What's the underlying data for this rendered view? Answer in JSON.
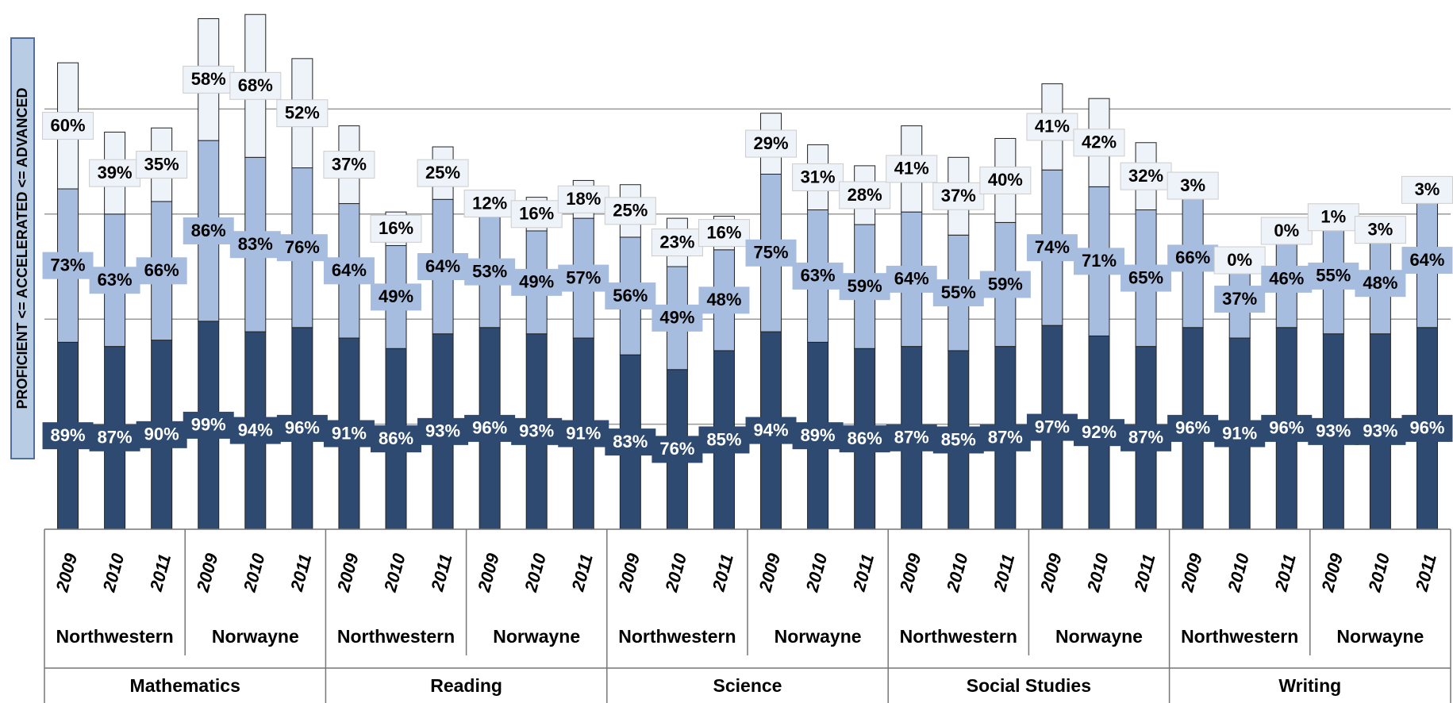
{
  "chart_data": {
    "type": "stacked_bar",
    "y_label": "PROFICIENT <= ACCELERATED <= ADVANCED",
    "categories": [
      "2009",
      "2010",
      "2011",
      "2009",
      "2010",
      "2011",
      "2009",
      "2010",
      "2011",
      "2009",
      "2010",
      "2011",
      "2009",
      "2010",
      "2011",
      "2009",
      "2010",
      "2011",
      "2009",
      "2010",
      "2011",
      "2009",
      "2010",
      "2011",
      "2009",
      "2010",
      "2011",
      "2009",
      "2010",
      "2011"
    ],
    "schools": [
      "Northwestern",
      "Norwayne",
      "Northwestern",
      "Norwayne",
      "Northwestern",
      "Norwayne",
      "Northwestern",
      "Norwayne",
      "Northwestern",
      "Norwayne"
    ],
    "subjects": [
      "Mathematics",
      "Reading",
      "Science",
      "Social Studies",
      "Writing"
    ],
    "series": [
      {
        "color": "#2e4a70",
        "label_color": "#ffffff",
        "values": [
          89,
          87,
          90,
          99,
          94,
          96,
          91,
          86,
          93,
          96,
          93,
          91,
          83,
          76,
          85,
          94,
          89,
          86,
          87,
          85,
          87,
          97,
          92,
          87,
          96,
          91,
          96,
          93,
          93,
          96
        ],
        "value_labels": [
          "89%",
          "87%",
          "90%",
          "99%",
          "94%",
          "96%",
          "91%",
          "86%",
          "93%",
          "96%",
          "93%",
          "91%",
          "83%",
          "76%",
          "85%",
          "94%",
          "89%",
          "86%",
          "87%",
          "85%",
          "87%",
          "97%",
          "92%",
          "87%",
          "96%",
          "91%",
          "96%",
          "93%",
          "93%",
          "96%"
        ]
      },
      {
        "color": "#a7bddf",
        "label_color": "#000000",
        "values": [
          73,
          63,
          66,
          86,
          83,
          76,
          64,
          49,
          64,
          53,
          49,
          57,
          56,
          49,
          48,
          75,
          63,
          59,
          64,
          55,
          59,
          74,
          71,
          65,
          66,
          37,
          46,
          55,
          48,
          64
        ],
        "value_labels": [
          "73%",
          "63%",
          "66%",
          "86%",
          "83%",
          "76%",
          "64%",
          "49%",
          "64%",
          "53%",
          "49%",
          "57%",
          "56%",
          "49%",
          "48%",
          "75%",
          "63%",
          "59%",
          "64%",
          "55%",
          "59%",
          "74%",
          "71%",
          "65%",
          "66%",
          "37%",
          "46%",
          "55%",
          "48%",
          "64%"
        ]
      },
      {
        "color": "#eef2f9",
        "label_color": "#000000",
        "values": [
          60,
          39,
          35,
          58,
          68,
          52,
          37,
          16,
          25,
          12,
          16,
          18,
          25,
          23,
          16,
          29,
          31,
          28,
          41,
          37,
          40,
          41,
          42,
          32,
          3,
          0,
          0,
          1,
          3,
          3
        ],
        "value_labels": [
          "60%",
          "39%",
          "35%",
          "58%",
          "68%",
          "52%",
          "37%",
          "16%",
          "25%",
          "12%",
          "16%",
          "18%",
          "25%",
          "23%",
          "16%",
          "29%",
          "31%",
          "28%",
          "41%",
          "37%",
          "40%",
          "41%",
          "42%",
          "32%",
          "3%",
          "0%",
          "0%",
          "1%",
          "3%",
          "3%"
        ]
      }
    ],
    "ylim": [
      0,
      250
    ],
    "yticks": [
      50,
      100,
      150,
      200
    ],
    "grid": true
  }
}
